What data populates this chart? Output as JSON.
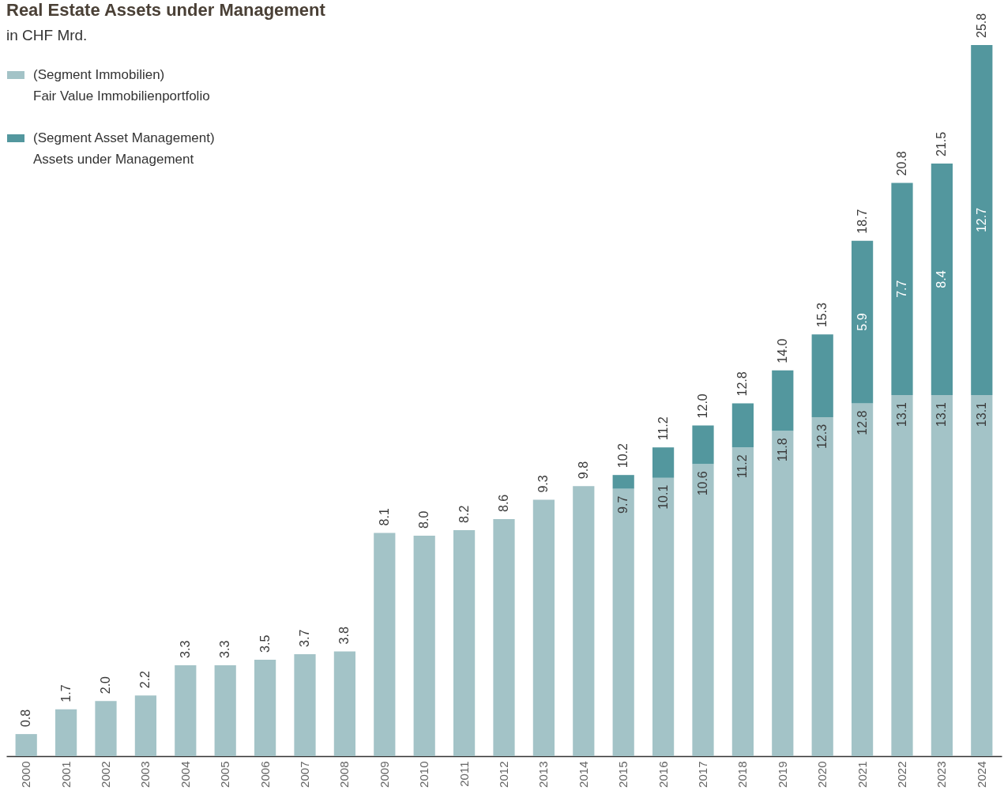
{
  "chart_data": {
    "type": "bar",
    "title": "Real Estate Assets under Management",
    "subtitle": "in CHF Mrd.",
    "categories": [
      "2000",
      "2001",
      "2002",
      "2003",
      "2004",
      "2005",
      "2006",
      "2007",
      "2008",
      "2009",
      "2010",
      "2011",
      "2012",
      "2013",
      "2014",
      "2015",
      "2016",
      "2017",
      "2018",
      "2019",
      "2020",
      "2021",
      "2022",
      "2023",
      "2024"
    ],
    "stacked": true,
    "legend": "top left",
    "series": [
      {
        "name": "(Segment Immobilien)\nFair Value Immobilienportfolio",
        "color": "#a3c3c7",
        "values": [
          0.8,
          1.7,
          2.0,
          2.2,
          3.3,
          3.3,
          3.5,
          3.7,
          3.8,
          8.1,
          8.0,
          8.2,
          8.6,
          9.3,
          9.8,
          9.7,
          10.1,
          10.6,
          11.2,
          11.8,
          12.3,
          12.8,
          13.1,
          13.1,
          13.1
        ],
        "value_labels": [
          null,
          null,
          null,
          null,
          null,
          null,
          null,
          null,
          null,
          null,
          null,
          null,
          null,
          null,
          null,
          "9.7",
          "10.1",
          "10.6",
          "11.2",
          "11.8",
          "12.3",
          "12.8",
          "13.1",
          "13.1",
          "13.1"
        ]
      },
      {
        "name": "(Segment Asset Management)\nAssets under Management",
        "color": "#53979e",
        "values": [
          null,
          null,
          null,
          null,
          null,
          null,
          null,
          null,
          null,
          null,
          null,
          null,
          null,
          null,
          null,
          0.5,
          1.1,
          1.4,
          1.6,
          2.2,
          3.0,
          5.9,
          7.7,
          8.4,
          12.7
        ],
        "value_labels": [
          null,
          null,
          null,
          null,
          null,
          null,
          null,
          null,
          null,
          null,
          null,
          null,
          null,
          null,
          null,
          null,
          null,
          null,
          null,
          null,
          null,
          "5.9",
          "7.7",
          "8.4",
          "12.7"
        ]
      }
    ],
    "totals": [
      "0.8",
      "1.7",
      "2.0",
      "2.2",
      "3.3",
      "3.3",
      "3.5",
      "3.7",
      "3.8",
      "8.1",
      "8.0",
      "8.2",
      "8.6",
      "9.3",
      "9.8",
      "10.2",
      "11.2",
      "12.0",
      "12.8",
      "14.0",
      "15.3",
      "18.7",
      "20.8",
      "21.5",
      "25.8"
    ]
  }
}
